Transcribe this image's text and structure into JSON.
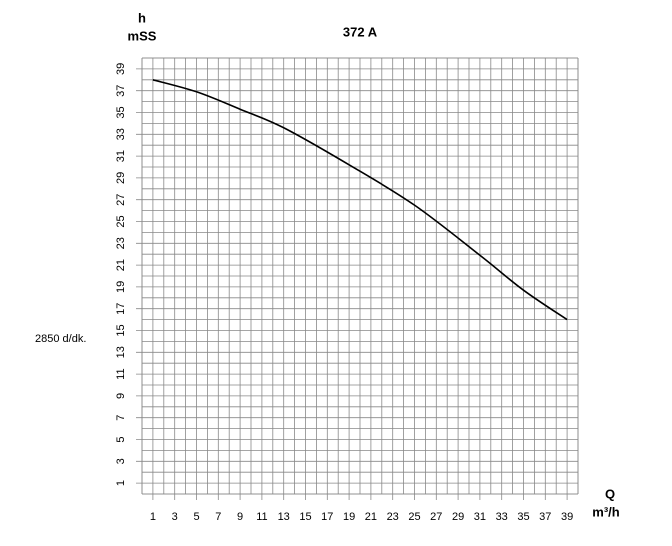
{
  "chart_data": {
    "type": "line",
    "title": "372 A",
    "y_label": "h",
    "y_unit": "mSS",
    "x_label": "Q",
    "x_unit": "m³/h",
    "annotation": "2850 d/dk.",
    "x": [
      1,
      5,
      9,
      13,
      19,
      25,
      31,
      35,
      39
    ],
    "series": [
      {
        "name": "372 A",
        "color": "#000000",
        "values": [
          38,
          36.9,
          35.3,
          33.6,
          30.2,
          26.5,
          21.9,
          18.7,
          16
        ]
      }
    ],
    "xlim": [
      0,
      40
    ],
    "ylim": [
      0,
      40
    ],
    "xticks": [
      1,
      3,
      5,
      7,
      9,
      11,
      13,
      15,
      17,
      19,
      21,
      23,
      25,
      27,
      29,
      31,
      33,
      35,
      37,
      39
    ],
    "yticks": [
      1,
      3,
      5,
      7,
      9,
      11,
      13,
      15,
      17,
      19,
      21,
      23,
      25,
      27,
      29,
      31,
      33,
      35,
      37,
      39
    ],
    "grid": true
  }
}
